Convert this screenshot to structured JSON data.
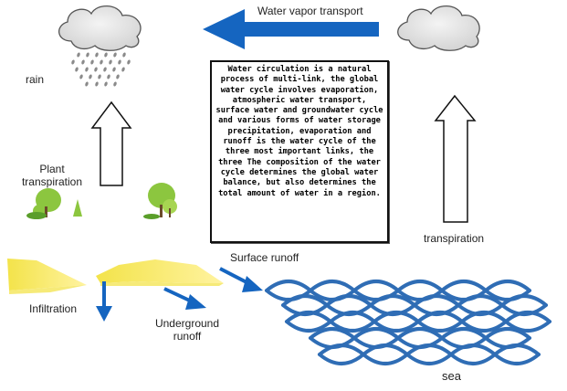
{
  "labels": {
    "water_vapor_transport": "Water vapor transport",
    "rain": "rain",
    "plant_transpiration_line1": "Plant",
    "plant_transpiration_line2": "transpiration",
    "transpiration": "transpiration",
    "surface_runoff": "Surface runoff",
    "infiltration": "Infiltration",
    "underground_runoff_line1": "Underground",
    "underground_runoff_line2": "runoff",
    "sea": "sea"
  },
  "info_text": "Water circulation is a natural process of multi-link, the global water cycle involves evaporation, atmospheric water transport, surface water and groundwater cycle and various forms of water storage precipitation, evaporation and runoff is the water cycle of the three most important links, the three The composition of the water cycle determines the global water balance, but also determines the total amount of water in a region.",
  "colors": {
    "arrow_blue": "#1565c0",
    "wave_blue": "#2f6db5",
    "cloud_grey": "#d9d9d9",
    "ground_yellow": "#f0e04a",
    "tree_green": "#8cc63f"
  }
}
